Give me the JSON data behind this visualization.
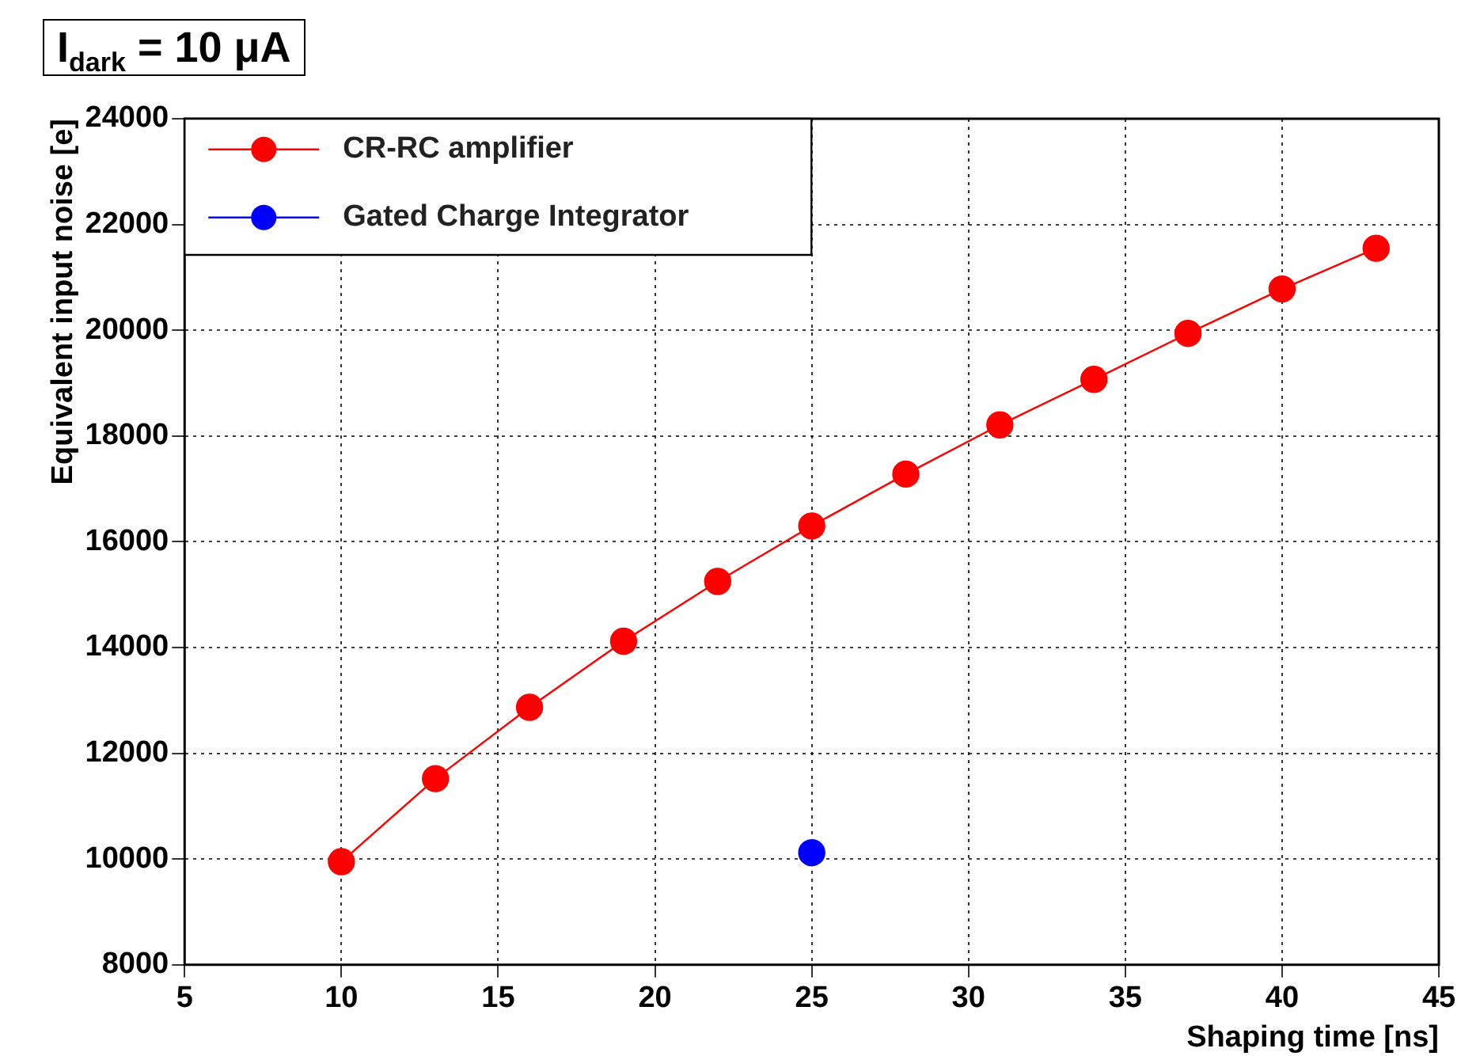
{
  "chart_data": {
    "type": "line",
    "title": "I$_{dark}$ = 10 μA",
    "xlabel": "Shaping time [ns]",
    "ylabel": "Equivalent input noise [e]",
    "xlim": [
      5,
      45
    ],
    "xticks": [
      5,
      10,
      15,
      20,
      25,
      30,
      35,
      40,
      45
    ],
    "ylim": [
      8000,
      24000
    ],
    "yticks": [
      8000,
      10000,
      12000,
      14000,
      16000,
      18000,
      20000,
      22000,
      24000
    ],
    "grid": true,
    "legend": "top left",
    "marker": "circle",
    "line_style": "solid",
    "series": [
      {
        "name": "CR-RC amplifier",
        "color": "#ff0000",
        "x": [
          10,
          13,
          16,
          19,
          22,
          25,
          28,
          31,
          34,
          37,
          40,
          43
        ],
        "values": [
          9950,
          11520,
          12870,
          14120,
          15250,
          16300,
          17280,
          18210,
          19070,
          19940,
          20780,
          21550
        ]
      },
      {
        "name": "Gated Charge Integrator",
        "color": "#0000ff",
        "x": [
          25
        ],
        "values": [
          10120
        ]
      }
    ]
  }
}
